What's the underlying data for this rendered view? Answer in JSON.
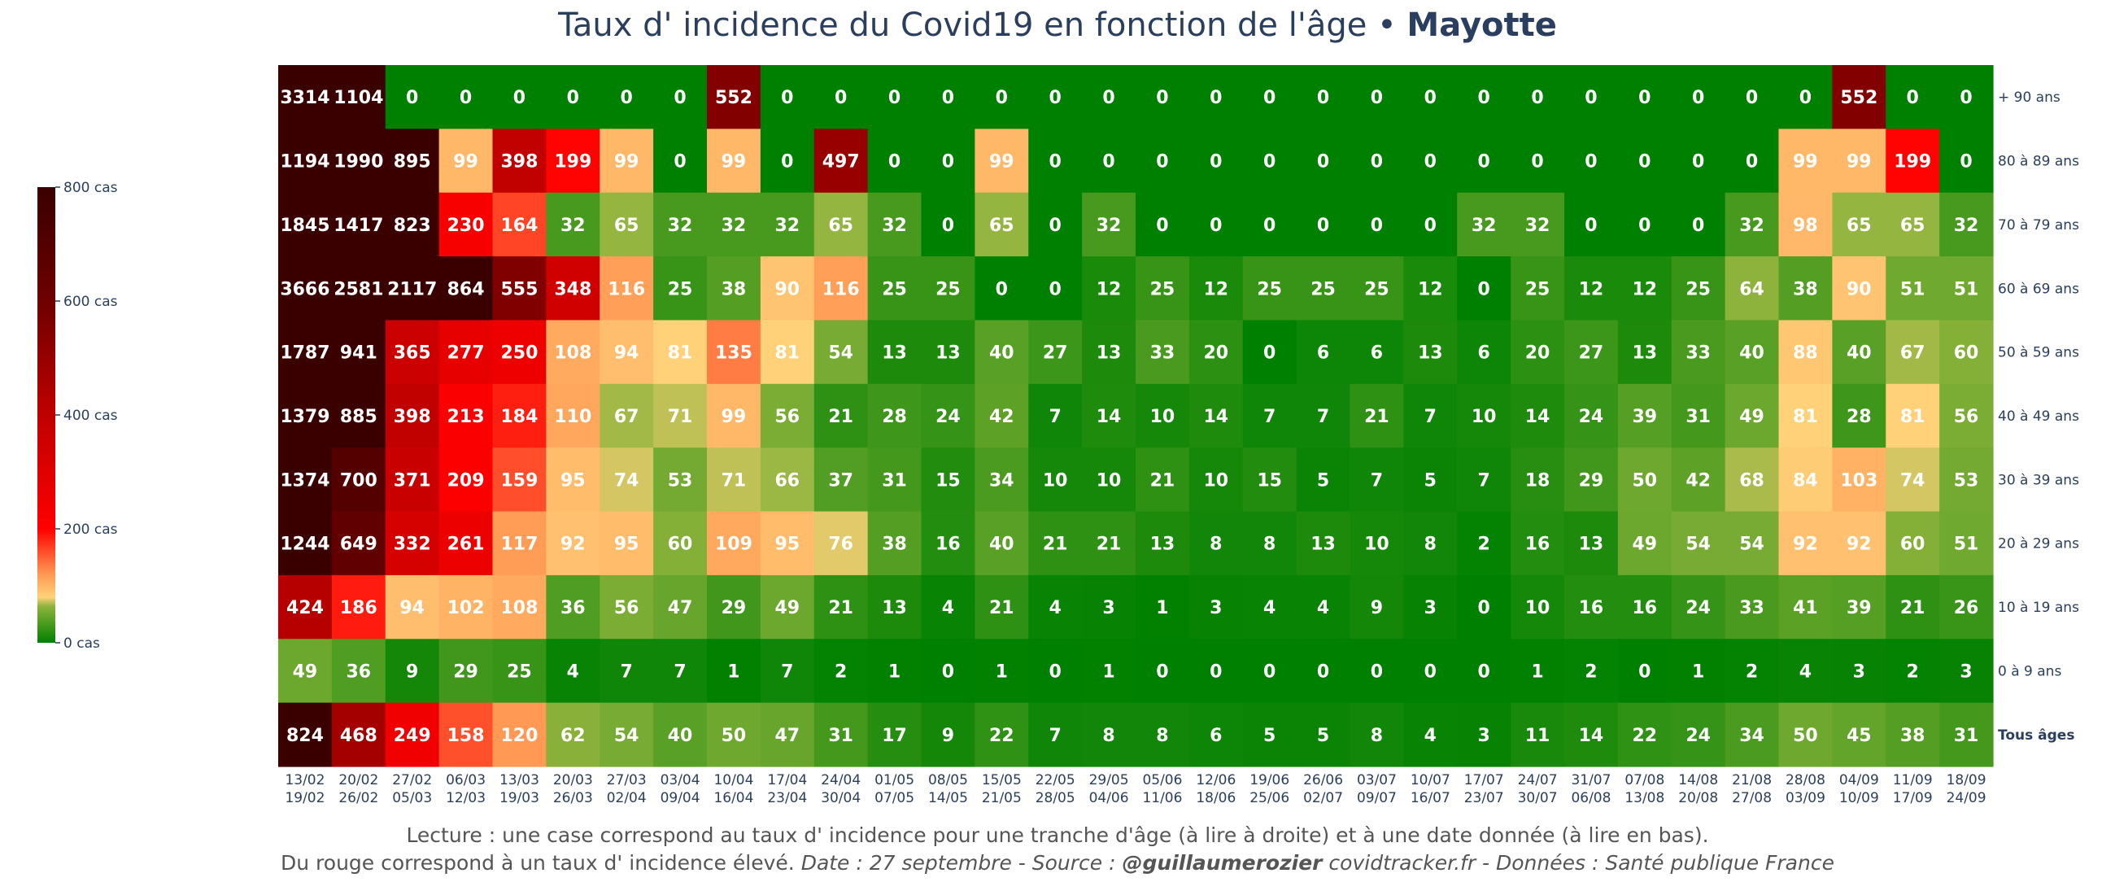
{
  "title": {
    "main": "Taux d' incidence du Covid19 en fonction de l'âge • ",
    "region": "Mayotte"
  },
  "footer": {
    "line1": "Lecture : une case correspond au taux d' incidence pour une tranche d'âge (à lire à droite) et à une date donnée (à lire en bas).",
    "line2_a": "Du rouge correspond à un taux d' incidence élevé.  ",
    "line2_b": "Date : 27 septembre - Source : ",
    "line2_c": "@guillaumerozier",
    "line2_d": " covidtracker.fr - Données : Santé publique France"
  },
  "chart_data": {
    "type": "heatmap",
    "title": "Taux d' incidence du Covid19 en fonction de l'âge • Mayotte",
    "x": [
      [
        "13/02",
        "19/02"
      ],
      [
        "20/02",
        "26/02"
      ],
      [
        "27/02",
        "05/03"
      ],
      [
        "06/03",
        "12/03"
      ],
      [
        "13/03",
        "19/03"
      ],
      [
        "20/03",
        "26/03"
      ],
      [
        "27/03",
        "02/04"
      ],
      [
        "03/04",
        "09/04"
      ],
      [
        "10/04",
        "16/04"
      ],
      [
        "17/04",
        "23/04"
      ],
      [
        "24/04",
        "30/04"
      ],
      [
        "01/05",
        "07/05"
      ],
      [
        "08/05",
        "14/05"
      ],
      [
        "15/05",
        "21/05"
      ],
      [
        "22/05",
        "28/05"
      ],
      [
        "29/05",
        "04/06"
      ],
      [
        "05/06",
        "11/06"
      ],
      [
        "12/06",
        "18/06"
      ],
      [
        "19/06",
        "25/06"
      ],
      [
        "26/06",
        "02/07"
      ],
      [
        "03/07",
        "09/07"
      ],
      [
        "10/07",
        "16/07"
      ],
      [
        "17/07",
        "23/07"
      ],
      [
        "24/07",
        "30/07"
      ],
      [
        "31/07",
        "06/08"
      ],
      [
        "07/08",
        "13/08"
      ],
      [
        "14/08",
        "20/08"
      ],
      [
        "21/08",
        "27/08"
      ],
      [
        "28/08",
        "03/09"
      ],
      [
        "04/09",
        "10/09"
      ],
      [
        "11/09",
        "17/09"
      ],
      [
        "18/09",
        "24/09"
      ]
    ],
    "y": [
      "+ 90 ans",
      "80 à 89 ans",
      "70 à 79 ans",
      "60 à 69 ans",
      "50 à 59 ans",
      "40 à 49 ans",
      "30 à 39 ans",
      "20 à 29 ans",
      "10 à 19 ans",
      "0 à 9 ans",
      "Tous âges"
    ],
    "z": [
      [
        3314,
        1104,
        0,
        0,
        0,
        0,
        0,
        0,
        552,
        0,
        0,
        0,
        0,
        0,
        0,
        0,
        0,
        0,
        0,
        0,
        0,
        0,
        0,
        0,
        0,
        0,
        0,
        0,
        0,
        552,
        0,
        0
      ],
      [
        1194,
        1990,
        895,
        99,
        398,
        199,
        99,
        0,
        99,
        0,
        497,
        0,
        0,
        99,
        0,
        0,
        0,
        0,
        0,
        0,
        0,
        0,
        0,
        0,
        0,
        0,
        0,
        0,
        99,
        99,
        199,
        0
      ],
      [
        1845,
        1417,
        823,
        230,
        164,
        32,
        65,
        32,
        32,
        32,
        65,
        32,
        0,
        65,
        0,
        32,
        0,
        0,
        0,
        0,
        0,
        0,
        32,
        32,
        0,
        0,
        0,
        32,
        98,
        65,
        65,
        32
      ],
      [
        3666,
        2581,
        2117,
        864,
        555,
        348,
        116,
        25,
        38,
        90,
        116,
        25,
        25,
        0,
        0,
        12,
        25,
        12,
        25,
        25,
        25,
        12,
        0,
        25,
        12,
        12,
        25,
        64,
        38,
        90,
        51,
        51
      ],
      [
        1787,
        941,
        365,
        277,
        250,
        108,
        94,
        81,
        135,
        81,
        54,
        13,
        13,
        40,
        27,
        13,
        33,
        20,
        0,
        6,
        6,
        13,
        6,
        20,
        27,
        13,
        33,
        40,
        88,
        40,
        67,
        60
      ],
      [
        1379,
        885,
        398,
        213,
        184,
        110,
        67,
        71,
        99,
        56,
        21,
        28,
        24,
        42,
        7,
        14,
        10,
        14,
        7,
        7,
        21,
        7,
        10,
        14,
        24,
        39,
        31,
        49,
        81,
        28,
        81,
        56
      ],
      [
        1374,
        700,
        371,
        209,
        159,
        95,
        74,
        53,
        71,
        66,
        37,
        31,
        15,
        34,
        10,
        10,
        21,
        10,
        15,
        5,
        7,
        5,
        7,
        18,
        29,
        50,
        42,
        68,
        84,
        103,
        74,
        53
      ],
      [
        1244,
        649,
        332,
        261,
        117,
        92,
        95,
        60,
        109,
        95,
        76,
        38,
        16,
        40,
        21,
        21,
        13,
        8,
        8,
        13,
        10,
        8,
        2,
        16,
        13,
        49,
        54,
        54,
        92,
        92,
        60,
        51
      ],
      [
        424,
        186,
        94,
        102,
        108,
        36,
        56,
        47,
        29,
        49,
        21,
        13,
        4,
        21,
        4,
        3,
        1,
        3,
        4,
        4,
        9,
        3,
        0,
        10,
        16,
        16,
        24,
        33,
        41,
        39,
        21,
        26
      ],
      [
        49,
        36,
        9,
        29,
        25,
        4,
        7,
        7,
        1,
        7,
        2,
        1,
        0,
        1,
        0,
        1,
        0,
        0,
        0,
        0,
        0,
        0,
        0,
        1,
        2,
        0,
        1,
        2,
        4,
        3,
        2,
        3
      ],
      [
        824,
        468,
        249,
        158,
        120,
        62,
        54,
        40,
        50,
        47,
        31,
        17,
        9,
        22,
        7,
        8,
        8,
        6,
        5,
        5,
        8,
        4,
        3,
        11,
        14,
        22,
        24,
        34,
        50,
        45,
        38,
        31
      ]
    ],
    "bold_rows": [
      "Tous âges"
    ],
    "colorscale": [
      [
        0,
        "#008000"
      ],
      [
        0.08,
        "#8db33c"
      ],
      [
        0.1,
        "#ffd27a"
      ],
      [
        0.15,
        "#ff9954"
      ],
      [
        0.25,
        "#ff0000"
      ],
      [
        0.5,
        "#c00000"
      ],
      [
        0.75,
        "#6e0000"
      ],
      [
        1,
        "#3a0000"
      ]
    ],
    "zrange": [
      0,
      800
    ],
    "colorbar": {
      "ticks": [
        0,
        200,
        400,
        600,
        800
      ],
      "tick_labels": [
        "0 cas",
        "200 cas",
        "400 cas",
        "600 cas",
        "800 cas"
      ]
    }
  }
}
